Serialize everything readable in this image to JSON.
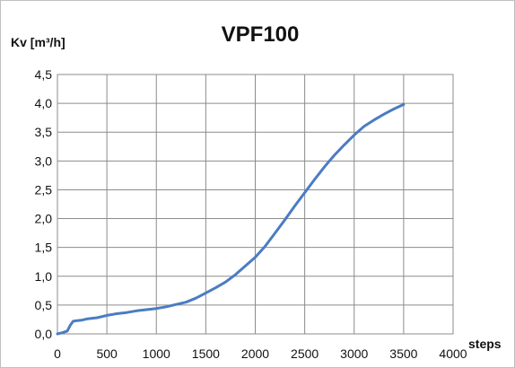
{
  "chart_data": {
    "type": "line",
    "title": "VPF100",
    "ylabel": "Kv [m³/h]",
    "xlabel": "steps",
    "xlim": [
      0,
      4000
    ],
    "ylim": [
      0,
      4.5
    ],
    "grid": true,
    "x_ticks": [
      "0",
      "500",
      "1000",
      "1500",
      "2000",
      "2500",
      "3000",
      "3500",
      "4000"
    ],
    "y_ticks": [
      "0,0",
      "0,5",
      "1,0",
      "1,5",
      "2,0",
      "2,5",
      "3,0",
      "3,5",
      "4,0",
      "4,5"
    ],
    "series": [
      {
        "color": "#4a7cc3",
        "x": [
          0,
          50,
          100,
          130,
          160,
          200,
          250,
          300,
          400,
          500,
          600,
          700,
          800,
          900,
          1000,
          1100,
          1200,
          1300,
          1400,
          1500,
          1600,
          1700,
          1800,
          1900,
          2000,
          2100,
          2200,
          2300,
          2400,
          2500,
          2600,
          2700,
          2800,
          2900,
          3000,
          3100,
          3200,
          3300,
          3400,
          3500
        ],
        "y": [
          0.0,
          0.02,
          0.05,
          0.15,
          0.22,
          0.23,
          0.24,
          0.26,
          0.28,
          0.32,
          0.35,
          0.37,
          0.4,
          0.42,
          0.44,
          0.47,
          0.51,
          0.55,
          0.62,
          0.71,
          0.8,
          0.9,
          1.03,
          1.18,
          1.33,
          1.52,
          1.75,
          1.98,
          2.22,
          2.45,
          2.68,
          2.9,
          3.1,
          3.28,
          3.45,
          3.6,
          3.71,
          3.81,
          3.9,
          3.98
        ]
      }
    ]
  }
}
